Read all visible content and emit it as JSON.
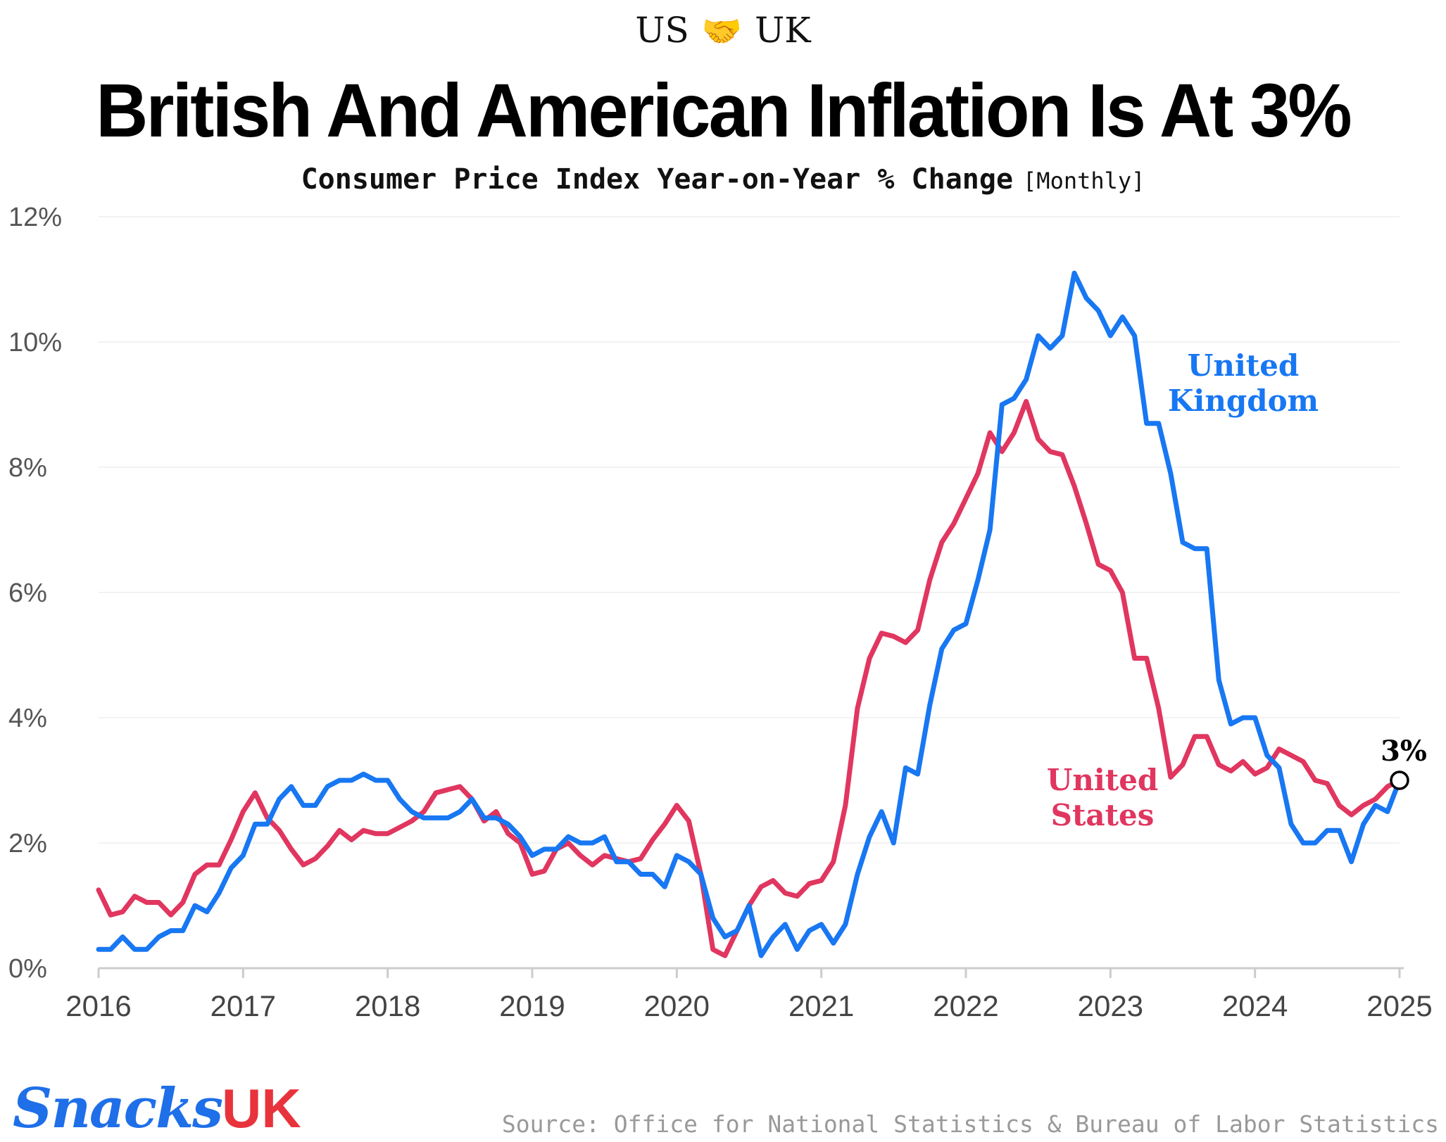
{
  "kicker": {
    "left": "US",
    "icon": "handshake-icon",
    "glyph": "🤝",
    "right": "UK"
  },
  "title": "British And American Inflation Is At 3%",
  "subtitle": {
    "main": "Consumer Price Index Year-on-Year % Change",
    "frequency": "[Monthly]"
  },
  "source": "Source: Office for National Statistics & Bureau of Labor Statistics",
  "logo": {
    "text": "Snacks",
    "suffix": "UK"
  },
  "colors": {
    "uk": "#1877f2",
    "us": "#e0365f",
    "grid": "#eeeeee",
    "axis": "#cccccc"
  },
  "chart_data": {
    "type": "line",
    "title": "British And American Inflation Is At 3%",
    "subtitle": "Consumer Price Index Year-on-Year % Change",
    "xlabel": "",
    "ylabel": "",
    "x_start": "2016-01",
    "x_end": "2025-01",
    "frequency": "monthly",
    "xlim": [
      2016,
      2025
    ],
    "ylim": [
      0,
      12
    ],
    "x_ticks": [
      "2016",
      "2017",
      "2018",
      "2019",
      "2020",
      "2021",
      "2022",
      "2023",
      "2024",
      "2025"
    ],
    "y_ticks": [
      "0%",
      "2%",
      "4%",
      "6%",
      "8%",
      "10%",
      "12%"
    ],
    "grid": true,
    "end_annotation": "3%",
    "series": [
      {
        "name": "United Kingdom",
        "label_line1": "United",
        "label_line2": "Kingdom",
        "values": [
          0.3,
          0.3,
          0.5,
          0.3,
          0.3,
          0.5,
          0.6,
          0.6,
          1.0,
          0.9,
          1.2,
          1.6,
          1.8,
          2.3,
          2.3,
          2.7,
          2.9,
          2.6,
          2.6,
          2.9,
          3.0,
          3.0,
          3.1,
          3.0,
          3.0,
          2.7,
          2.5,
          2.4,
          2.4,
          2.4,
          2.5,
          2.7,
          2.4,
          2.4,
          2.3,
          2.1,
          1.8,
          1.9,
          1.9,
          2.1,
          2.0,
          2.0,
          2.1,
          1.7,
          1.7,
          1.5,
          1.5,
          1.3,
          1.8,
          1.7,
          1.5,
          0.8,
          0.5,
          0.6,
          1.0,
          0.2,
          0.5,
          0.7,
          0.3,
          0.6,
          0.7,
          0.4,
          0.7,
          1.5,
          2.1,
          2.5,
          2.0,
          3.2,
          3.1,
          4.2,
          5.1,
          5.4,
          5.5,
          6.2,
          7.0,
          9.0,
          9.1,
          9.4,
          10.1,
          9.9,
          10.1,
          11.1,
          10.7,
          10.5,
          10.1,
          10.4,
          10.1,
          8.7,
          8.7,
          7.9,
          6.8,
          6.7,
          6.7,
          4.6,
          3.9,
          4.0,
          4.0,
          3.4,
          3.2,
          2.3,
          2.0,
          2.0,
          2.2,
          2.2,
          1.7,
          2.3,
          2.6,
          2.5,
          3.0
        ],
        "color": "#1877f2"
      },
      {
        "name": "United States",
        "label_line1": "United",
        "label_line2": "States",
        "values": [
          1.25,
          0.85,
          0.9,
          1.15,
          1.05,
          1.05,
          0.85,
          1.05,
          1.5,
          1.65,
          1.65,
          2.05,
          2.5,
          2.8,
          2.4,
          2.2,
          1.9,
          1.65,
          1.75,
          1.95,
          2.2,
          2.05,
          2.2,
          2.15,
          2.15,
          2.25,
          2.35,
          2.5,
          2.8,
          2.85,
          2.9,
          2.7,
          2.35,
          2.5,
          2.15,
          2.0,
          1.5,
          1.55,
          1.9,
          2.0,
          1.8,
          1.65,
          1.8,
          1.75,
          1.7,
          1.75,
          2.05,
          2.3,
          2.6,
          2.35,
          1.5,
          0.3,
          0.2,
          0.6,
          1.0,
          1.3,
          1.4,
          1.2,
          1.15,
          1.35,
          1.4,
          1.7,
          2.6,
          4.15,
          4.95,
          5.35,
          5.3,
          5.2,
          5.4,
          6.2,
          6.8,
          7.1,
          7.5,
          7.9,
          8.55,
          8.25,
          8.55,
          9.05,
          8.45,
          8.25,
          8.2,
          7.7,
          7.1,
          6.45,
          6.35,
          6.0,
          4.95,
          4.95,
          4.15,
          3.05,
          3.25,
          3.7,
          3.7,
          3.25,
          3.15,
          3.3,
          3.1,
          3.2,
          3.5,
          3.4,
          3.3,
          3.0,
          2.95,
          2.6,
          2.45,
          2.6,
          2.7,
          2.9,
          3.0
        ],
        "color": "#e0365f"
      }
    ]
  }
}
